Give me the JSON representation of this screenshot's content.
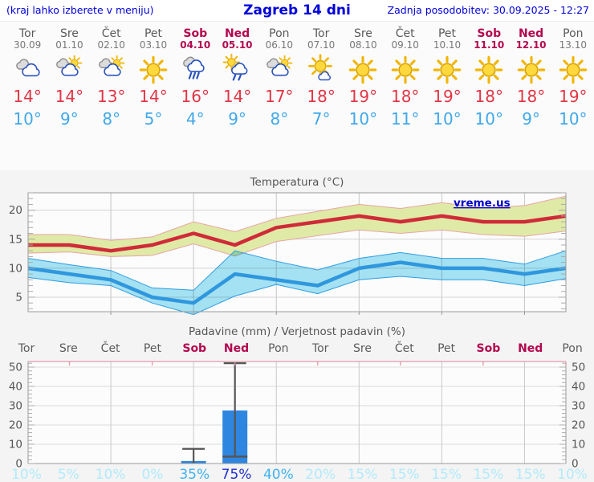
{
  "header": {
    "left": "(kraj lahko izberete v meniju)",
    "title": "Zagreb 14 dni",
    "right": "Zadnja posodobitev: 30.09.2025 - 12:27"
  },
  "colors": {
    "header_blue": "#0000dd",
    "weekend": "#b4074f",
    "weekday_text": "#5b5b5b",
    "date_text": "#787878",
    "high_temp": "#e23645",
    "low_temp": "#41a8ea",
    "max_line": "#cf2b39",
    "max_band": "#dfeaa6",
    "max_band_edge": "#e8a4a4",
    "min_line": "#2f97dd",
    "min_band": "#a6e4f5",
    "min_band_edge": "#2f9ce2",
    "bar_fill": "#2e86e0",
    "whisker": "#555555",
    "prob_low": "#b2eafc",
    "prob_mid": "#41b2f1",
    "prob_high": "#2231cd",
    "axis_text": "#555555",
    "frame": "#9a9a9a",
    "grid": "#d4d4d4",
    "plot_bg": "#fcfcfc",
    "pink_edge": "#e497ad",
    "watermark_blue": "#0000cc"
  },
  "forecast": {
    "days": [
      {
        "name": "Tor",
        "date": "30.09",
        "icon": "cloudy",
        "high": "14°",
        "low": "10°",
        "weekend": false
      },
      {
        "name": "Sre",
        "date": "01.10",
        "icon": "partly-cloudy",
        "high": "14°",
        "low": "9°",
        "weekend": false
      },
      {
        "name": "Čet",
        "date": "02.10",
        "icon": "partly-cloudy",
        "high": "13°",
        "low": "8°",
        "weekend": false
      },
      {
        "name": "Pet",
        "date": "03.10",
        "icon": "sunny",
        "high": "14°",
        "low": "5°",
        "weekend": false
      },
      {
        "name": "Sob",
        "date": "04.10",
        "icon": "rain",
        "high": "16°",
        "low": "4°",
        "weekend": true
      },
      {
        "name": "Ned",
        "date": "05.10",
        "icon": "sun-rain",
        "high": "14°",
        "low": "9°",
        "weekend": true
      },
      {
        "name": "Pon",
        "date": "06.10",
        "icon": "partly-cloudy",
        "high": "17°",
        "low": "8°",
        "weekend": false
      },
      {
        "name": "Tor",
        "date": "07.10",
        "icon": "mostly-sunny",
        "high": "18°",
        "low": "7°",
        "weekend": false
      },
      {
        "name": "Sre",
        "date": "08.10",
        "icon": "sunny",
        "high": "19°",
        "low": "10°",
        "weekend": false
      },
      {
        "name": "Čet",
        "date": "09.10",
        "icon": "sunny",
        "high": "18°",
        "low": "11°",
        "weekend": false
      },
      {
        "name": "Pet",
        "date": "10.10",
        "icon": "sunny",
        "high": "19°",
        "low": "10°",
        "weekend": false
      },
      {
        "name": "Sob",
        "date": "11.10",
        "icon": "sunny",
        "high": "18°",
        "low": "10°",
        "weekend": true
      },
      {
        "name": "Ned",
        "date": "12.10",
        "icon": "sunny",
        "high": "18°",
        "low": "9°",
        "weekend": true
      },
      {
        "name": "Pon",
        "date": "13.10",
        "icon": "sunny",
        "high": "19°",
        "low": "10°",
        "weekend": false
      }
    ]
  },
  "chart_data": [
    {
      "type": "area",
      "title": "Temperatura (°C)",
      "watermark": "vreme.us",
      "ylim": [
        2.5,
        23
      ],
      "yticks": [
        5,
        10,
        15,
        20
      ],
      "grid_days": [
        2,
        4,
        6,
        8,
        10,
        12
      ],
      "series": [
        {
          "name": "max",
          "values": [
            14,
            14,
            13,
            14,
            16,
            14,
            17,
            18,
            19,
            18,
            19,
            18,
            18,
            19
          ],
          "band_upper": [
            15.8,
            15.8,
            14.8,
            15.4,
            18.0,
            16.3,
            18.6,
            19.8,
            21.0,
            20.3,
            21.3,
            20.4,
            20.8,
            22.4
          ],
          "band_lower": [
            12.6,
            12.8,
            12.0,
            12.2,
            14.2,
            12.1,
            14.6,
            15.6,
            16.6,
            16.0,
            16.6,
            15.8,
            15.5,
            16.4
          ]
        },
        {
          "name": "min",
          "values": [
            10,
            9,
            8,
            5,
            4,
            9,
            8,
            7,
            10,
            11,
            10,
            10,
            9,
            10
          ],
          "band_upper": [
            11.7,
            10.6,
            9.6,
            6.6,
            6.2,
            13.0,
            11.2,
            9.7,
            11.7,
            12.7,
            11.7,
            11.7,
            10.7,
            13.0
          ],
          "band_lower": [
            8.4,
            7.5,
            7.0,
            4.0,
            2.0,
            5.2,
            7.2,
            5.6,
            8.0,
            8.6,
            8.0,
            8.0,
            7.0,
            8.2
          ]
        }
      ]
    },
    {
      "type": "bar",
      "title": "Padavine (mm) / Verjetnost padavin (%)",
      "categories": [
        "Tor",
        "Sre",
        "Čet",
        "Pet",
        "Sob",
        "Ned",
        "Pon",
        "Tor",
        "Sre",
        "Čet",
        "Pet",
        "Sob",
        "Ned",
        "Pon"
      ],
      "weekend_indices": [
        4,
        5,
        11,
        12
      ],
      "values": [
        0,
        0,
        0,
        0,
        1.3,
        27.5,
        0,
        0,
        0,
        0,
        0,
        0,
        0,
        0
      ],
      "whiskers": [
        {
          "index": 4,
          "low": 0,
          "high": 7.6
        },
        {
          "index": 5,
          "low": 3.6,
          "high": 52
        }
      ],
      "probabilities": [
        10,
        5,
        10,
        0,
        35,
        75,
        40,
        20,
        15,
        15,
        15,
        15,
        15,
        10
      ],
      "ylim": [
        0,
        52.9
      ],
      "yticks": [
        0,
        10,
        20,
        30,
        40,
        50
      ],
      "grid_days": [
        2,
        4,
        6,
        8,
        10,
        12
      ]
    }
  ]
}
